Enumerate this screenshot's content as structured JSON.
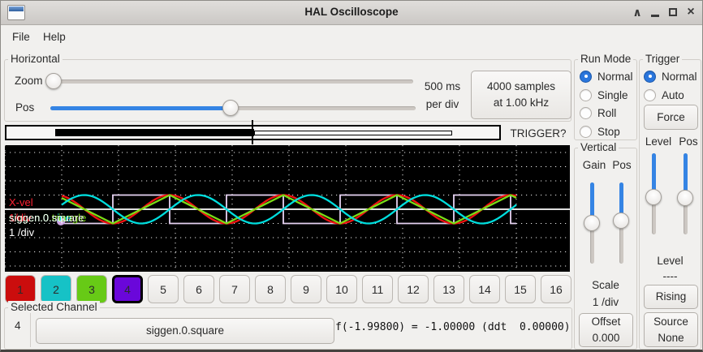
{
  "window": {
    "title": "HAL Oscilloscope",
    "controls": [
      "shade",
      "minimize",
      "maximize",
      "close"
    ],
    "close_glyph": "×",
    "shade_glyph": "∧"
  },
  "menu": {
    "items": [
      "File",
      "Help"
    ]
  },
  "horizontal": {
    "label": "Horizontal",
    "zoom_label": "Zoom",
    "pos_label": "Pos",
    "time_line1": "500 ms",
    "time_line2": "per div",
    "samples_line1": "4000 samples",
    "samples_line2": "at 1.00 kHz",
    "trigger_status": "TRIGGER?"
  },
  "run_mode": {
    "label": "Run Mode",
    "options": [
      {
        "label": "Normal",
        "selected": true
      },
      {
        "label": "Single",
        "selected": false
      },
      {
        "label": "Roll",
        "selected": false
      },
      {
        "label": "Stop",
        "selected": false
      }
    ]
  },
  "vertical": {
    "label": "Vertical",
    "gain_label": "Gain",
    "pos_label": "Pos",
    "scale_label": "Scale",
    "scale_value": "1 /div",
    "offset_label": "Offset",
    "offset_value": "0.000"
  },
  "trigger": {
    "label": "Trigger",
    "options": [
      {
        "label": "Normal",
        "selected": true
      },
      {
        "label": "Auto",
        "selected": false
      }
    ],
    "force_label": "Force",
    "level_label": "Level",
    "pos_label": "Pos",
    "readout_label": "Level",
    "readout_value": "----",
    "edge_label": "Rising",
    "source_label": "Source",
    "source_value": "None"
  },
  "scope": {
    "time_per_div": "500 ms",
    "readout": {
      "ch1_name": "X-vel",
      "ch1_scale": "1/div",
      "ch2_name": "siggen.0.sine",
      "ch3_name": "siggen.0.triangle",
      "sel_name": "siggen.0.square",
      "sel_scale": "1 /div"
    },
    "traces": [
      {
        "channel": 4,
        "name": "siggen.0.square",
        "shape": "square",
        "color": "#e6d2f2",
        "selected": true
      },
      {
        "channel": 1,
        "name": "X-vel",
        "shape": "cosine",
        "color": "#f01212",
        "selected": false
      },
      {
        "channel": 3,
        "name": "siggen.0.triangle",
        "shape": "triangle",
        "color": "#7bdc16",
        "selected": false
      },
      {
        "channel": 2,
        "name": "siggen.0.sine",
        "shape": "sine",
        "color": "#00dede",
        "selected": false
      }
    ],
    "marker_color": "#cfa6e6",
    "grid_color": "#ffffff"
  },
  "channels": {
    "buttons": [
      {
        "num": "1",
        "bg": "#cb0d0d",
        "selected": false
      },
      {
        "num": "2",
        "bg": "#16c2c6",
        "selected": false
      },
      {
        "num": "3",
        "bg": "#67ca16",
        "selected": false
      },
      {
        "num": "4",
        "bg": "#6a07da",
        "selected": true
      },
      {
        "num": "5",
        "bg": null,
        "selected": false
      },
      {
        "num": "6",
        "bg": null,
        "selected": false
      },
      {
        "num": "7",
        "bg": null,
        "selected": false
      },
      {
        "num": "8",
        "bg": null,
        "selected": false
      },
      {
        "num": "9",
        "bg": null,
        "selected": false
      },
      {
        "num": "10",
        "bg": null,
        "selected": false
      },
      {
        "num": "11",
        "bg": null,
        "selected": false
      },
      {
        "num": "12",
        "bg": null,
        "selected": false
      },
      {
        "num": "13",
        "bg": null,
        "selected": false
      },
      {
        "num": "14",
        "bg": null,
        "selected": false
      },
      {
        "num": "15",
        "bg": null,
        "selected": false
      },
      {
        "num": "16",
        "bg": null,
        "selected": false
      }
    ]
  },
  "selected_channel": {
    "label": "Selected Channel",
    "number": "4",
    "source": "siggen.0.square",
    "readout": "f(-1.99800) = -1.00000 (ddt  0.00000)"
  }
}
